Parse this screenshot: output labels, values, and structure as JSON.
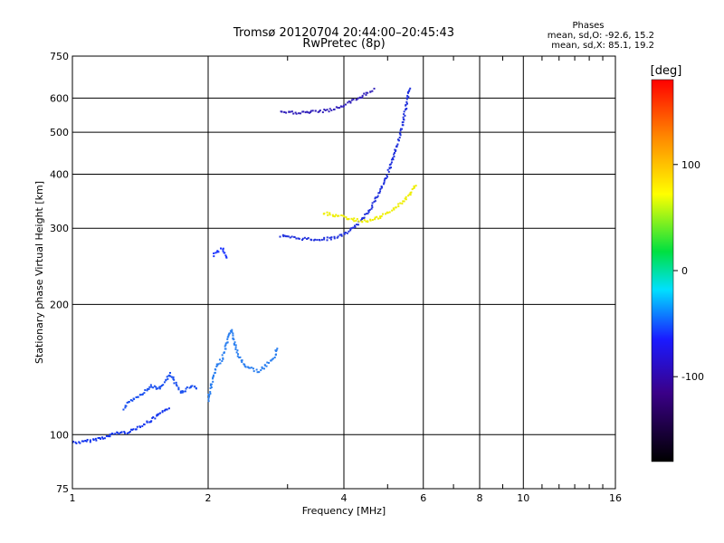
{
  "chart_data": {
    "type": "scatter",
    "title": "Tromsø 20120704 20:44:00–20:45:43",
    "subtitle": "RwPretec (8p)",
    "xlabel": "Frequency [MHz]",
    "ylabel": "Stationary phase Virtual Height [km]",
    "x_scale": "log",
    "y_scale": "log",
    "xlim": [
      1,
      16
    ],
    "ylim": [
      75,
      750
    ],
    "x_ticks": [
      1,
      2,
      4,
      6,
      8,
      10,
      16
    ],
    "y_ticks": [
      75,
      100,
      200,
      300,
      400,
      500,
      600,
      750
    ],
    "grid": true,
    "stats": {
      "heading": "Phases",
      "line_o": "mean, sd,O:  -92.6, 15.2",
      "line_x": "mean, sd,X:  85.1, 19.2"
    },
    "colorbar": {
      "label": "[deg]",
      "ticks": [
        100,
        0,
        -100
      ],
      "range": [
        -180,
        180
      ]
    },
    "series": [
      {
        "trace_id": "e_region_low",
        "color": "#1133ee",
        "points": [
          [
            1.0,
            96
          ],
          [
            1.05,
            96
          ],
          [
            1.1,
            97
          ],
          [
            1.15,
            98
          ],
          [
            1.2,
            99
          ],
          [
            1.25,
            101
          ],
          [
            1.3,
            101
          ],
          [
            1.35,
            102
          ],
          [
            1.4,
            104
          ],
          [
            1.45,
            106
          ],
          [
            1.5,
            108
          ],
          [
            1.55,
            111
          ],
          [
            1.6,
            113
          ],
          [
            1.65,
            116
          ]
        ]
      },
      {
        "trace_id": "e_region_upper",
        "color": "#1a50f0",
        "points": [
          [
            1.3,
            115
          ],
          [
            1.35,
            120
          ],
          [
            1.4,
            123
          ],
          [
            1.45,
            126
          ],
          [
            1.5,
            130
          ],
          [
            1.55,
            127
          ],
          [
            1.6,
            132
          ],
          [
            1.65,
            138
          ],
          [
            1.7,
            130
          ],
          [
            1.75,
            125
          ],
          [
            1.8,
            128
          ],
          [
            1.85,
            130
          ],
          [
            1.9,
            127
          ]
        ]
      },
      {
        "trace_id": "es_cloud",
        "color": "#2a7ff0",
        "points": [
          [
            2.0,
            120
          ],
          [
            2.05,
            135
          ],
          [
            2.1,
            145
          ],
          [
            2.15,
            150
          ],
          [
            2.2,
            162
          ],
          [
            2.25,
            175
          ],
          [
            2.3,
            160
          ],
          [
            2.35,
            150
          ],
          [
            2.4,
            145
          ],
          [
            2.5,
            142
          ],
          [
            2.6,
            140
          ],
          [
            2.7,
            145
          ],
          [
            2.8,
            150
          ],
          [
            2.85,
            160
          ]
        ]
      },
      {
        "trace_id": "f1_cusp",
        "color": "#1a33ff",
        "points": [
          [
            2.05,
            260
          ],
          [
            2.1,
            265
          ],
          [
            2.15,
            270
          ],
          [
            2.2,
            255
          ]
        ]
      },
      {
        "trace_id": "f2_o_trace",
        "color": "#2233dd",
        "points": [
          [
            2.9,
            288
          ],
          [
            3.0,
            286
          ],
          [
            3.2,
            284
          ],
          [
            3.4,
            283
          ],
          [
            3.6,
            283
          ],
          [
            3.8,
            285
          ],
          [
            4.0,
            290
          ],
          [
            4.2,
            300
          ],
          [
            4.4,
            315
          ],
          [
            4.6,
            335
          ],
          [
            4.8,
            365
          ],
          [
            5.0,
            400
          ],
          [
            5.2,
            450
          ],
          [
            5.4,
            520
          ],
          [
            5.5,
            580
          ],
          [
            5.6,
            640
          ]
        ]
      },
      {
        "trace_id": "f2_x_trace",
        "color": "#eeee00",
        "points": [
          [
            3.6,
            325
          ],
          [
            3.8,
            322
          ],
          [
            4.0,
            318
          ],
          [
            4.2,
            314
          ],
          [
            4.4,
            312
          ],
          [
            4.6,
            313
          ],
          [
            4.8,
            318
          ],
          [
            5.0,
            325
          ],
          [
            5.2,
            335
          ],
          [
            5.4,
            345
          ],
          [
            5.6,
            360
          ],
          [
            5.8,
            380
          ]
        ]
      },
      {
        "trace_id": "upper_branch",
        "color": "#3322bb",
        "points": [
          [
            2.9,
            555
          ],
          [
            3.1,
            555
          ],
          [
            3.3,
            556
          ],
          [
            3.5,
            558
          ],
          [
            3.7,
            562
          ],
          [
            3.9,
            570
          ],
          [
            4.1,
            585
          ],
          [
            4.3,
            600
          ],
          [
            4.5,
            615
          ],
          [
            4.7,
            630
          ]
        ]
      }
    ]
  }
}
